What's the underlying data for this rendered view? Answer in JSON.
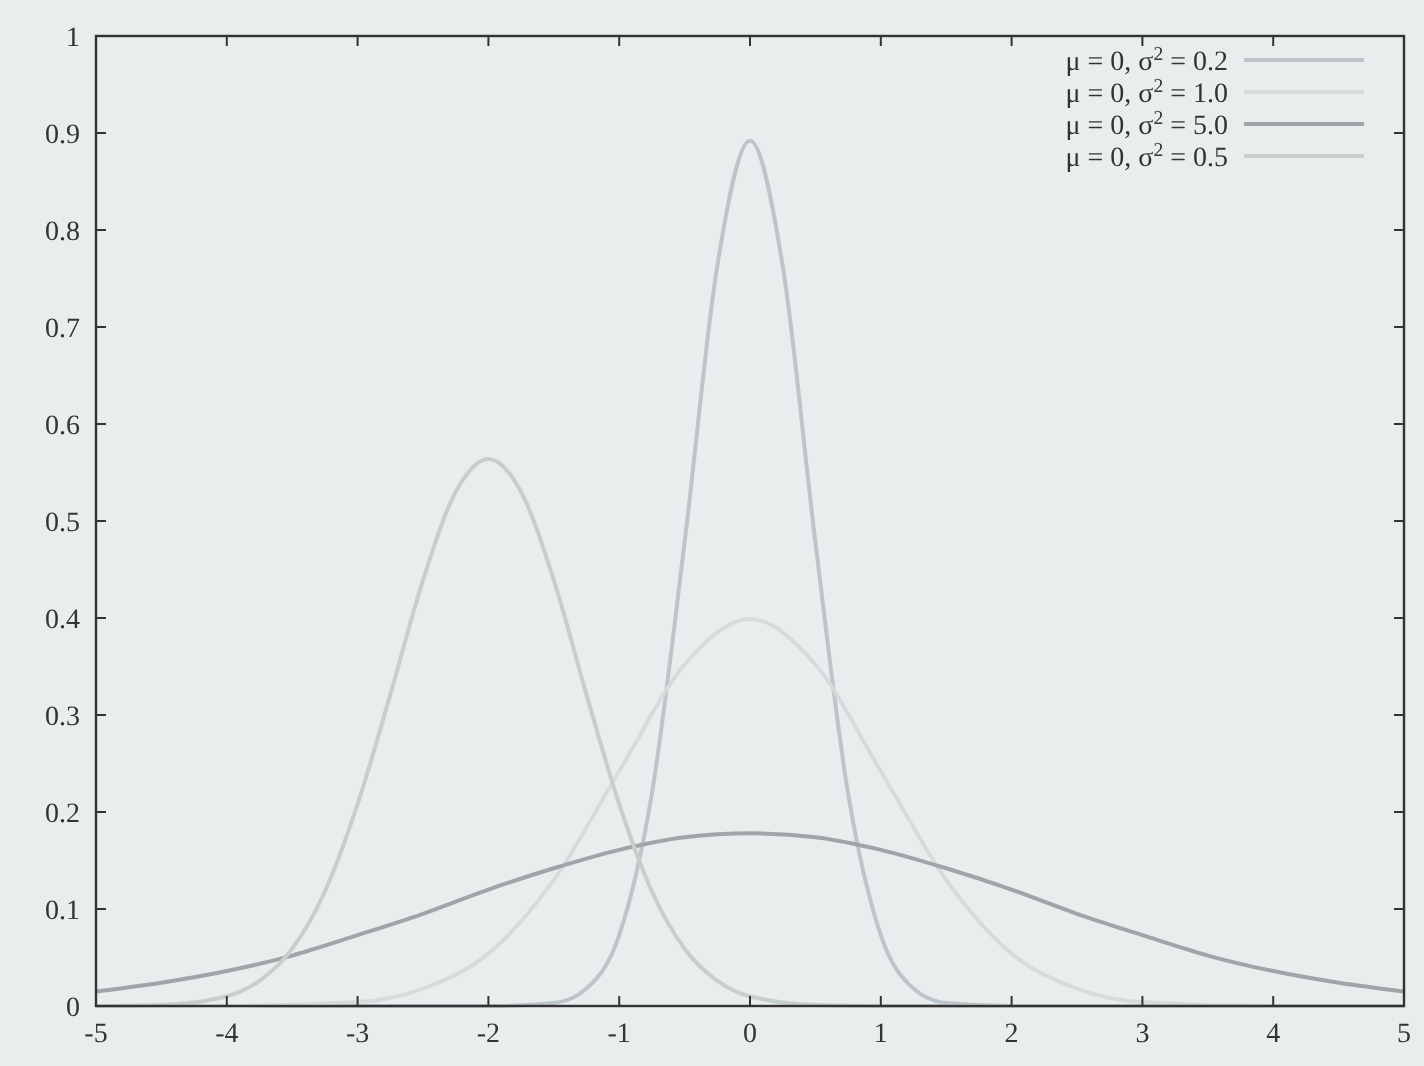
{
  "chart_data": {
    "type": "line",
    "xlim": [
      -5,
      5
    ],
    "ylim": [
      0,
      1
    ],
    "xticks": [
      -5,
      -4,
      -3,
      -2,
      -1,
      0,
      1,
      2,
      3,
      4,
      5
    ],
    "yticks": [
      0,
      0.1,
      0.2,
      0.3,
      0.4,
      0.5,
      0.6,
      0.7,
      0.8,
      0.9,
      1
    ],
    "legend": "top right",
    "grid": false,
    "series": [
      {
        "name": "μ = 0, σ$^{2}$ = 0.2",
        "color": "#bcc6ca",
        "x": [
          -5,
          -2,
          -1.5,
          -1.25,
          -1,
          -0.75,
          -0.5,
          -0.25,
          0,
          0.25,
          0.5,
          0.75,
          1,
          1.25,
          1.5,
          2,
          5
        ],
        "values": [
          0,
          0,
          0.003,
          0.018,
          0.073,
          0.219,
          0.478,
          0.763,
          0.892,
          0.763,
          0.478,
          0.219,
          0.073,
          0.018,
          0.003,
          0,
          0
        ]
      },
      {
        "name": "μ = 0, σ$^{2}$ = 1.0",
        "color": "#d6dcdc",
        "x": [
          -5,
          -4,
          -3,
          -2.5,
          -2,
          -1.5,
          -1,
          -0.5,
          0,
          0.5,
          1,
          1.5,
          2,
          2.5,
          3,
          4,
          5
        ],
        "values": [
          0,
          0,
          0.004,
          0.018,
          0.054,
          0.13,
          0.242,
          0.352,
          0.399,
          0.352,
          0.242,
          0.13,
          0.054,
          0.018,
          0.004,
          0,
          0
        ]
      },
      {
        "name": "μ = 0, σ$^{2}$ = 5.0",
        "color": "#9ea6a8",
        "x": [
          -5,
          -4.5,
          -4,
          -3.5,
          -3,
          -2.5,
          -2,
          -1.5,
          -1,
          -0.5,
          0,
          0.5,
          1,
          1.5,
          2,
          2.5,
          3,
          3.5,
          4,
          4.5,
          5
        ],
        "values": [
          0.015,
          0.024,
          0.036,
          0.052,
          0.073,
          0.095,
          0.12,
          0.142,
          0.161,
          0.174,
          0.178,
          0.174,
          0.161,
          0.142,
          0.12,
          0.095,
          0.073,
          0.052,
          0.036,
          0.024,
          0.015
        ]
      },
      {
        "name": "μ = 0, σ$^{2}$ = 0.5",
        "color": "#c6cfcb",
        "x": [
          -5,
          -4.5,
          -4,
          -3.75,
          -3.5,
          -3.25,
          -3,
          -2.75,
          -2.5,
          -2.25,
          -2,
          -1.75,
          -1.5,
          -1.25,
          -1,
          -0.75,
          -0.5,
          -0.25,
          0,
          0.5,
          1,
          5
        ],
        "values": [
          0,
          0.001,
          0.01,
          0.026,
          0.059,
          0.118,
          0.208,
          0.321,
          0.439,
          0.53,
          0.564,
          0.53,
          0.439,
          0.321,
          0.208,
          0.118,
          0.059,
          0.026,
          0.01,
          0.001,
          0,
          0
        ]
      }
    ]
  }
}
